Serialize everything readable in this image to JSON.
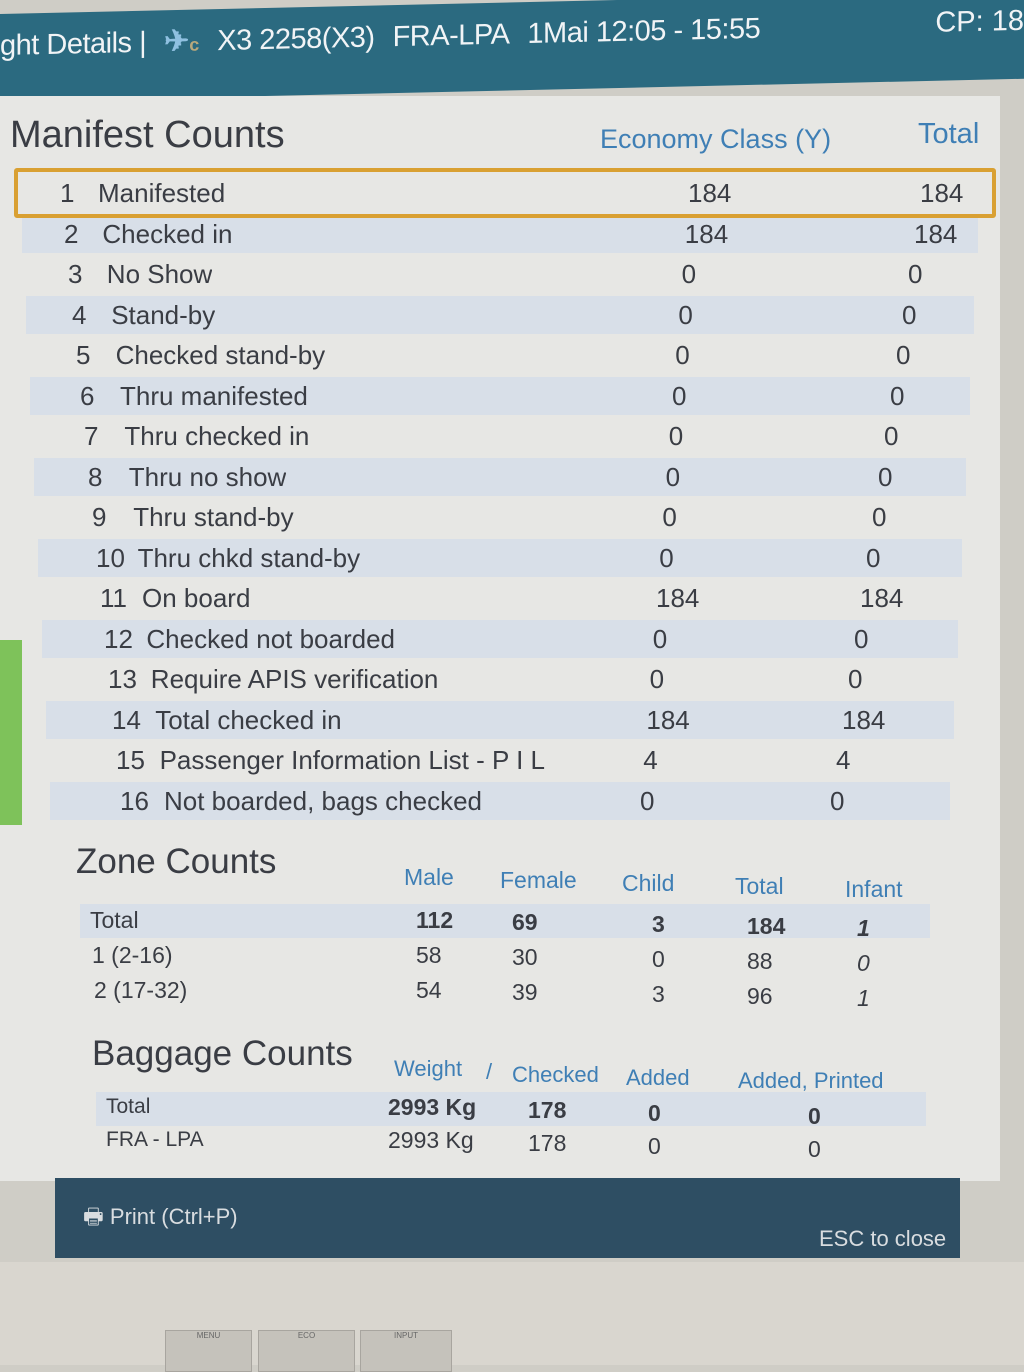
{
  "titlebar": {
    "title": "ght Details |",
    "flight": "X3 2258(X3)",
    "route": "FRA-LPA",
    "date_time": "1Mai 12:05 - 15:55",
    "cp": "CP: 18"
  },
  "manifest": {
    "title": "Manifest Counts",
    "col_economy": "Economy Class (Y)",
    "col_total": "Total",
    "rows": [
      {
        "n": "1",
        "label": "Manifested",
        "econ": "184",
        "total": "184"
      },
      {
        "n": "2",
        "label": "Checked in",
        "econ": "184",
        "total": "184"
      },
      {
        "n": "3",
        "label": "No Show",
        "econ": "0",
        "total": "0"
      },
      {
        "n": "4",
        "label": "Stand-by",
        "econ": "0",
        "total": "0"
      },
      {
        "n": "5",
        "label": "Checked stand-by",
        "econ": "0",
        "total": "0"
      },
      {
        "n": "6",
        "label": "Thru manifested",
        "econ": "0",
        "total": "0"
      },
      {
        "n": "7",
        "label": "Thru checked in",
        "econ": "0",
        "total": "0"
      },
      {
        "n": "8",
        "label": "Thru no show",
        "econ": "0",
        "total": "0"
      },
      {
        "n": "9",
        "label": "Thru stand-by",
        "econ": "0",
        "total": "0"
      },
      {
        "n": "10",
        "label": "Thru chkd stand-by",
        "econ": "0",
        "total": "0"
      },
      {
        "n": "11",
        "label": "On board",
        "econ": "184",
        "total": "184"
      },
      {
        "n": "12",
        "label": "Checked not boarded",
        "econ": "0",
        "total": "0"
      },
      {
        "n": "13",
        "label": "Require APIS verification",
        "econ": "0",
        "total": "0"
      },
      {
        "n": "14",
        "label": "Total checked in",
        "econ": "184",
        "total": "184"
      },
      {
        "n": "15",
        "label": "Passenger Information List - P I L",
        "econ": "4",
        "total": "4"
      },
      {
        "n": "16",
        "label": "Not boarded, bags checked",
        "econ": "0",
        "total": "0"
      }
    ]
  },
  "zone": {
    "title": "Zone Counts",
    "headers": [
      "Male",
      "Female",
      "Child",
      "Total",
      "Infant"
    ],
    "rows": [
      {
        "label": "Total",
        "values": [
          "112",
          "69",
          "3",
          "184",
          "1"
        ]
      },
      {
        "label": "1 (2-16)",
        "values": [
          "58",
          "30",
          "0",
          "88",
          "0"
        ]
      },
      {
        "label": "2 (17-32)",
        "values": [
          "54",
          "39",
          "3",
          "96",
          "1"
        ]
      }
    ]
  },
  "baggage": {
    "title": "Baggage Counts",
    "headers": [
      "Weight",
      "/",
      "Checked",
      "Added",
      "Added, Printed"
    ],
    "rows": [
      {
        "label": "Total",
        "values": [
          "2993 Kg",
          "178",
          "0",
          "0"
        ]
      },
      {
        "label": "FRA - LPA",
        "values": [
          "2993 Kg",
          "178",
          "0",
          "0"
        ]
      }
    ]
  },
  "footer": {
    "print": "Print (Ctrl+P)",
    "close": "ESC to close"
  },
  "bezel": {
    "buttons": [
      "MENU",
      "ECO",
      "INPUT"
    ]
  },
  "colors": {
    "titlebar": "#2b6a80",
    "header_text": "#3f7fb5",
    "selection": "#d9a032",
    "footer": "#2e4e63"
  }
}
